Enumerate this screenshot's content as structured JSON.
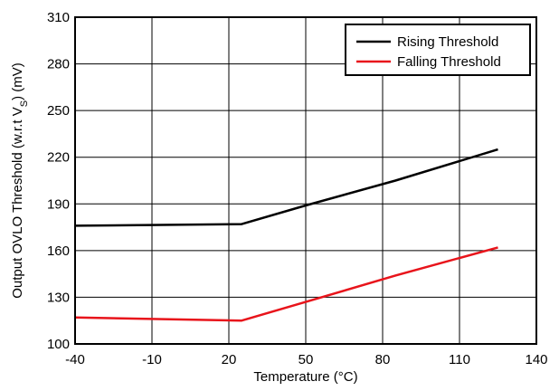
{
  "chart_data": {
    "type": "line",
    "title": "",
    "xlabel": "Temperature (°C)",
    "ylabel_parts": [
      "Output OVLO Threshold (w.r.t V",
      "S",
      ") (mV)"
    ],
    "xlim": [
      -40,
      140
    ],
    "ylim": [
      100,
      310
    ],
    "xticks": [
      -40,
      -10,
      20,
      50,
      80,
      110,
      140
    ],
    "yticks": [
      100,
      130,
      160,
      190,
      220,
      250,
      280,
      310
    ],
    "xtick_labels": [
      "-40",
      "-10",
      "20",
      "50",
      "80",
      "110",
      "140"
    ],
    "ytick_labels": [
      "100",
      "130",
      "160",
      "190",
      "220",
      "250",
      "280",
      "310"
    ],
    "grid": true,
    "legend_position": "top-right",
    "series": [
      {
        "name": "Rising Threshold",
        "color": "#000000",
        "points": [
          [
            -40,
            176
          ],
          [
            25,
            177
          ],
          [
            50,
            189
          ],
          [
            85,
            205
          ],
          [
            125,
            225
          ]
        ]
      },
      {
        "name": "Falling Threshold",
        "color": "#e8141b",
        "points": [
          [
            -40,
            117
          ],
          [
            25,
            115
          ],
          [
            50,
            127
          ],
          [
            85,
            144
          ],
          [
            125,
            162
          ]
        ]
      }
    ]
  }
}
